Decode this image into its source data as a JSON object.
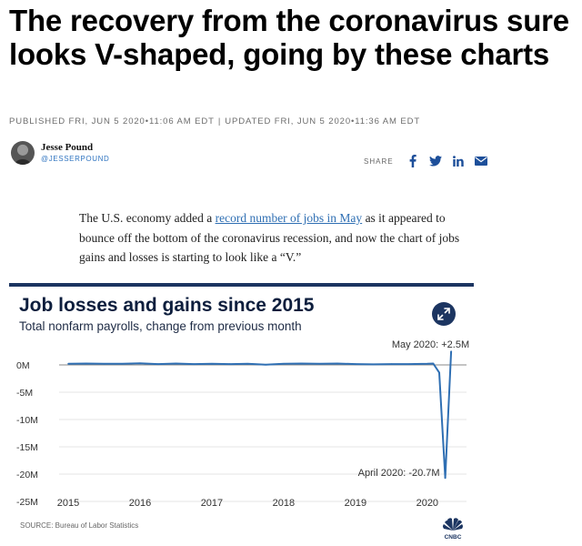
{
  "article": {
    "headline": "The recovery from the coronavirus sure looks V-shaped, going by these charts",
    "published": "PUBLISHED FRI, JUN 5 2020•11:06 AM EDT",
    "separator": "|",
    "updated": "UPDATED FRI, JUN 5 2020•11:36 AM EDT",
    "author_name": "Jesse Pound",
    "author_handle": "@JESSERPOUND",
    "share_label": "SHARE",
    "body_before_link": "The U.S. economy added a ",
    "body_link": "record number of jobs in May",
    "body_after_link": " as it appeared to bounce off the bottom of the coronavirus recession, and now the chart of jobs gains and losses is starting to look like a “V.”"
  },
  "share_icons": [
    "facebook-icon",
    "twitter-icon",
    "linkedin-icon",
    "email-icon"
  ],
  "colors": {
    "navy": "#1c3561",
    "link": "#2f6fb3",
    "line": "#2f6fb3"
  },
  "chart_data": {
    "type": "line",
    "title": "Job losses and gains since 2015",
    "subtitle": "Total nonfarm payrolls, change from previous month",
    "yticks": [
      "0M",
      "-5M",
      "-10M",
      "-15M",
      "-20M",
      "-25M"
    ],
    "ytick_values": [
      0,
      -5,
      -10,
      -15,
      -20,
      -25
    ],
    "xticks": [
      "2015",
      "2016",
      "2017",
      "2018",
      "2019",
      "2020"
    ],
    "xtick_values": [
      2015,
      2016,
      2017,
      2018,
      2019,
      2020
    ],
    "ylim": [
      -25,
      2.5
    ],
    "xlim": [
      2015,
      2020.42
    ],
    "x": [
      2015.0,
      2015.25,
      2015.5,
      2015.75,
      2016.0,
      2016.25,
      2016.5,
      2016.75,
      2017.0,
      2017.25,
      2017.5,
      2017.75,
      2018.0,
      2018.25,
      2018.5,
      2018.75,
      2019.0,
      2019.25,
      2019.5,
      2019.75,
      2020.0,
      2020.083,
      2020.167,
      2020.25,
      2020.333
    ],
    "values": [
      0.2,
      0.25,
      0.2,
      0.2,
      0.3,
      0.15,
      0.25,
      0.15,
      0.2,
      0.15,
      0.2,
      0.05,
      0.2,
      0.25,
      0.2,
      0.25,
      0.15,
      0.1,
      0.15,
      0.15,
      0.2,
      0.25,
      -1.4,
      -20.7,
      2.5
    ],
    "annotations": [
      {
        "text": "May 2020: +2.5M",
        "x": 2020.333,
        "y": 2.5
      },
      {
        "text": "April 2020: -20.7M",
        "x": 2020.25,
        "y": -20.7
      }
    ],
    "grid": true,
    "source": "SOURCE: Bureau of Labor Statistics"
  }
}
